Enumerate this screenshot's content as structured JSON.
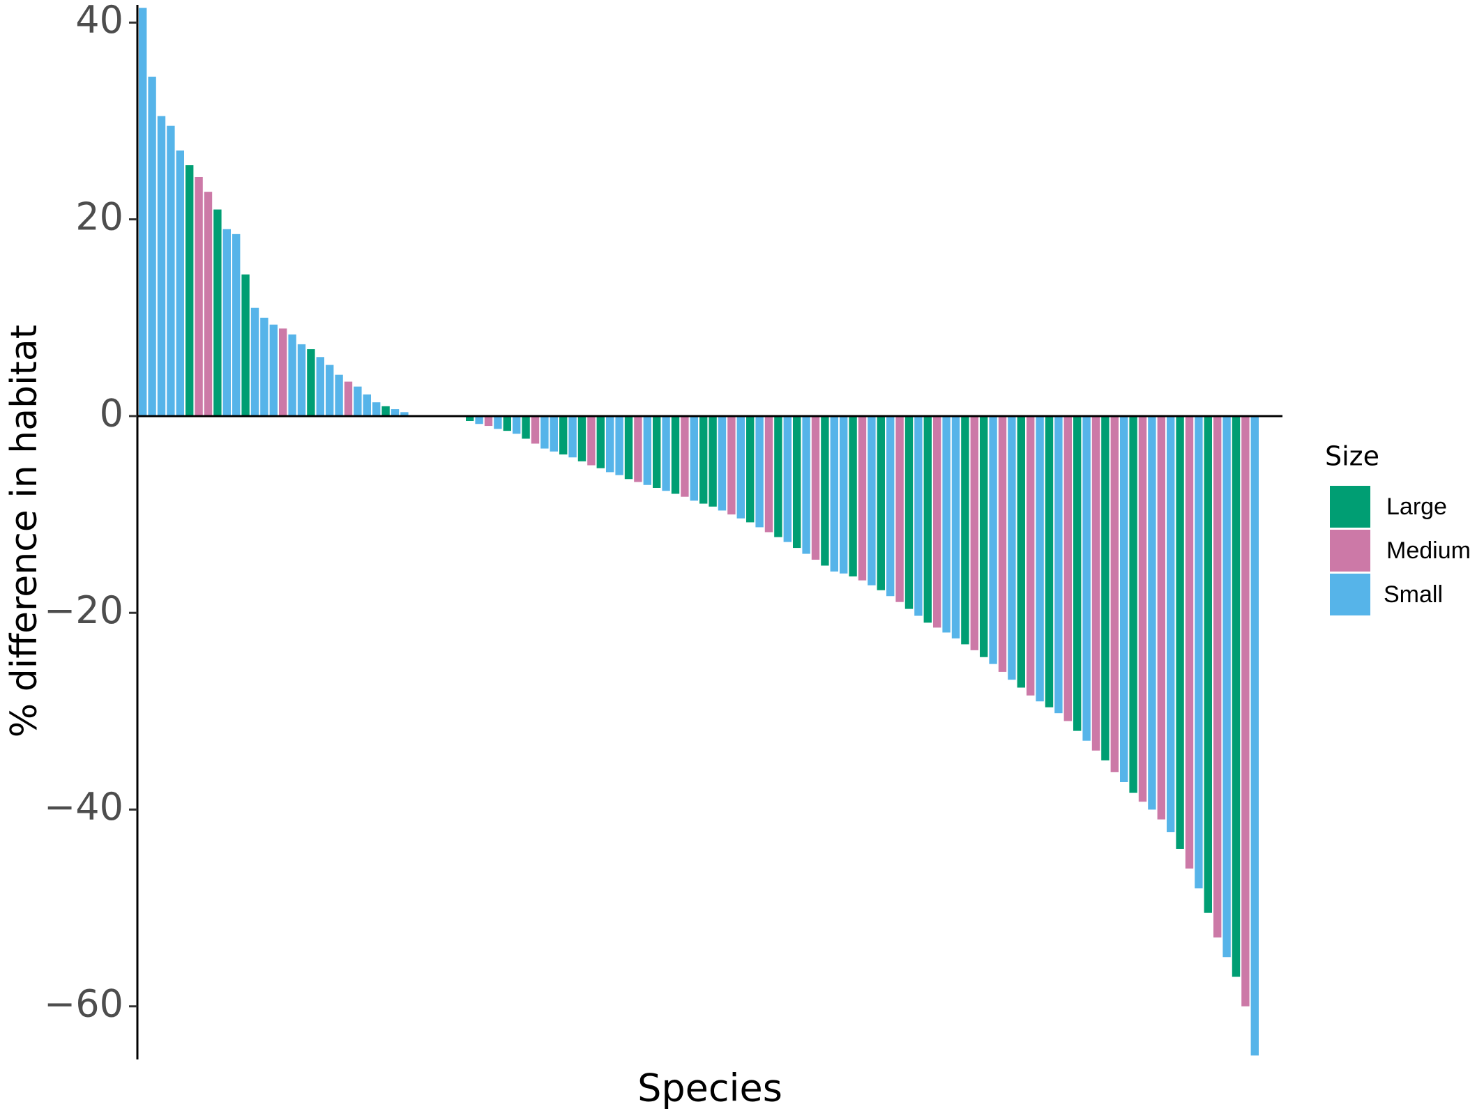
{
  "chart_data": {
    "type": "bar",
    "y_label": "% difference in habitat",
    "x_label": "Species",
    "ylim": [
      -65.4,
      41.8
    ],
    "yticks": [
      {
        "value": -60,
        "label": "−60"
      },
      {
        "value": -40,
        "label": "−40"
      },
      {
        "value": -20,
        "label": "−20"
      },
      0,
      20,
      40
    ],
    "legend": {
      "title": "Size",
      "entries": [
        {
          "name": "Large",
          "color": "#009E73"
        },
        {
          "name": "Medium",
          "color": "#CC79A7"
        },
        {
          "name": "Small",
          "color": "#56B4E9"
        }
      ]
    },
    "categories": [
      null,
      null,
      null,
      null,
      null,
      null,
      null,
      null,
      null,
      null,
      null,
      null,
      null,
      null,
      null,
      null,
      null,
      null,
      null,
      null,
      null,
      null,
      null,
      null,
      null,
      null,
      null,
      null,
      null,
      null,
      null,
      null,
      null,
      null,
      null,
      null,
      null,
      null,
      null,
      null,
      null,
      null,
      null,
      null,
      null,
      null,
      null,
      null,
      null,
      null,
      null,
      null,
      null,
      null,
      null,
      null,
      null,
      null,
      null,
      null,
      null,
      null,
      null,
      null,
      null,
      null,
      null,
      null,
      null,
      null,
      null,
      null,
      null,
      null,
      null,
      null,
      null,
      null,
      null,
      null,
      null,
      null,
      null,
      null,
      null,
      null,
      null,
      null,
      null,
      null,
      null,
      null,
      null,
      null,
      null,
      null,
      null,
      null,
      null,
      null,
      null,
      null,
      null,
      null,
      null,
      null,
      null,
      null,
      null,
      null,
      null,
      null,
      null,
      null,
      null,
      null,
      null,
      null,
      null,
      null
    ],
    "values": [
      41.5,
      34.5,
      30.5,
      29.5,
      27,
      25.5,
      24.3,
      22.8,
      21,
      19,
      18.5,
      14.4,
      11,
      10,
      9.3,
      8.9,
      8.3,
      7.3,
      6.8,
      6,
      5.2,
      4.2,
      3.5,
      3,
      2.2,
      1.4,
      1,
      0.7,
      0.4,
      0.1,
      0,
      0,
      0,
      0,
      -0.1,
      -0.5,
      -0.8,
      -1,
      -1.3,
      -1.5,
      -1.8,
      -2.3,
      -2.8,
      -3.3,
      -3.6,
      -3.9,
      -4.2,
      -4.6,
      -5,
      -5.3,
      -5.7,
      -6,
      -6.4,
      -6.7,
      -7,
      -7.3,
      -7.6,
      -7.9,
      -8.2,
      -8.6,
      -8.9,
      -9.2,
      -9.6,
      -10,
      -10.4,
      -10.8,
      -11.3,
      -11.8,
      -12.3,
      -12.8,
      -13.4,
      -14,
      -14.6,
      -15.2,
      -15.8,
      -16,
      -16.3,
      -16.7,
      -17.2,
      -17.7,
      -18.3,
      -18.9,
      -19.6,
      -20.3,
      -21,
      -21.5,
      -22,
      -22.6,
      -23.2,
      -23.8,
      -24.5,
      -25.2,
      -26,
      -26.8,
      -27.6,
      -28.4,
      -29,
      -29.6,
      -30.2,
      -31,
      -32,
      -33,
      -34,
      -35,
      -36.2,
      -37.2,
      -38.3,
      -39.2,
      -40,
      -41,
      -42.3,
      -44,
      -46,
      -48,
      -50.5,
      -53,
      -55,
      -57,
      -60,
      -65
    ],
    "groups": [
      "Small",
      "Small",
      "Small",
      "Small",
      "Small",
      "Large",
      "Medium",
      "Medium",
      "Large",
      "Small",
      "Small",
      "Large",
      "Small",
      "Small",
      "Small",
      "Medium",
      "Small",
      "Small",
      "Large",
      "Small",
      "Small",
      "Small",
      "Medium",
      "Small",
      "Small",
      "Small",
      "Large",
      "Small",
      "Small",
      "Small",
      "Small",
      "Large",
      "Small",
      "Medium",
      "Small",
      "Large",
      "Small",
      "Medium",
      "Small",
      "Large",
      "Small",
      "Large",
      "Medium",
      "Small",
      "Small",
      "Large",
      "Small",
      "Large",
      "Medium",
      "Large",
      "Small",
      "Small",
      "Large",
      "Medium",
      "Small",
      "Large",
      "Small",
      "Large",
      "Medium",
      "Small",
      "Large",
      "Large",
      "Small",
      "Medium",
      "Small",
      "Large",
      "Small",
      "Medium",
      "Large",
      "Small",
      "Large",
      "Small",
      "Medium",
      "Large",
      "Small",
      "Small",
      "Large",
      "Medium",
      "Small",
      "Large",
      "Small",
      "Medium",
      "Large",
      "Small",
      "Large",
      "Medium",
      "Small",
      "Small",
      "Large",
      "Medium",
      "Large",
      "Small",
      "Medium",
      "Small",
      "Large",
      "Medium",
      "Small",
      "Large",
      "Small",
      "Medium",
      "Large",
      "Small",
      "Medium",
      "Large",
      "Medium",
      "Small",
      "Large",
      "Medium",
      "Small",
      "Medium",
      "Small",
      "Large",
      "Medium",
      "Small",
      "Large",
      "Medium",
      "Small",
      "Large",
      "Medium",
      "Small"
    ]
  }
}
